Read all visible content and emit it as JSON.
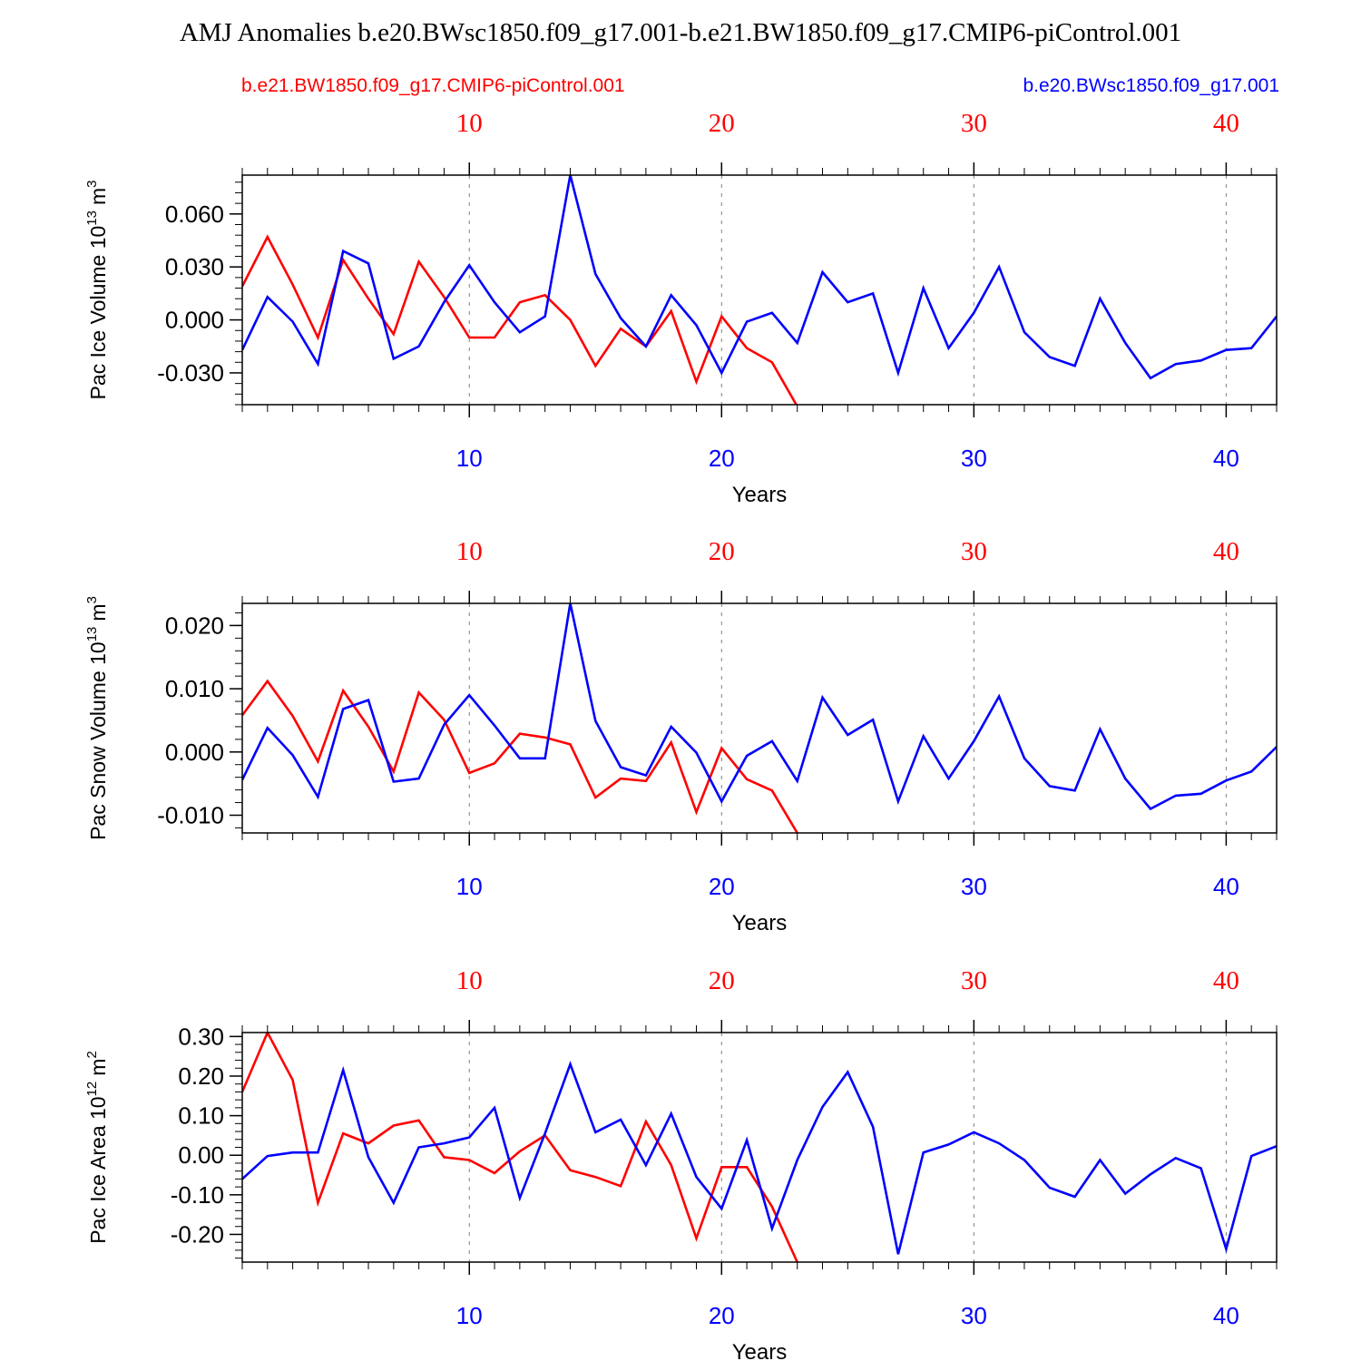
{
  "title": "AMJ Anomalies b.e20.BWsc1850.f09_g17.001-b.e21.BW1850.f09_g17.CMIP6-piControl.001",
  "legend": {
    "left_label": "b.e21.BW1850.f09_g17.CMIP6-piControl.001",
    "right_label": "b.e20.BWsc1850.f09_g17.001"
  },
  "colors": {
    "case_a": "#ff0000",
    "case_b": "#0000ff",
    "axis": "#000000",
    "grid": "#808080"
  },
  "chart_data": [
    {
      "type": "line",
      "name": "pac-ice-volume",
      "ylabel_text": "Pac Ice Volume 10",
      "ylabel_sup": "13",
      "ylabel_unit": "m",
      "ylabel_unit_sup": "3",
      "xlabel": "Years",
      "xlim": [
        1,
        42
      ],
      "ylim": [
        -0.048,
        0.082
      ],
      "yticks": [
        -0.03,
        0.0,
        0.03,
        0.06
      ],
      "ytick_labels": [
        "-0.030",
        "0.000",
        "0.030",
        "0.060"
      ],
      "yminor": 0.006,
      "xticks": [
        10,
        20,
        30,
        40
      ],
      "xtick_labels": [
        "10",
        "20",
        "30",
        "40"
      ],
      "grid_x": true,
      "series": [
        {
          "name": "b.e21.BW1850.f09_g17.CMIP6-piControl.001",
          "color": "#ff0000",
          "x": [
            1,
            2,
            3,
            4,
            5,
            6,
            7,
            8,
            9,
            10,
            11,
            12,
            13,
            14,
            15,
            16,
            17,
            18,
            19,
            20,
            21,
            22,
            23
          ],
          "values": [
            0.019,
            0.047,
            0.02,
            -0.01,
            0.034,
            0.012,
            -0.008,
            0.033,
            0.013,
            -0.01,
            -0.01,
            0.01,
            0.014,
            0.0,
            -0.026,
            -0.005,
            -0.015,
            0.005,
            -0.035,
            0.002,
            -0.016,
            -0.024,
            -0.049
          ]
        },
        {
          "name": "b.e20.BWsc1850.f09_g17.001",
          "color": "#0000ff",
          "x": [
            1,
            2,
            3,
            4,
            5,
            6,
            7,
            8,
            9,
            10,
            11,
            12,
            13,
            14,
            15,
            16,
            17,
            18,
            19,
            20,
            21,
            22,
            23,
            24,
            25,
            26,
            27,
            28,
            29,
            30,
            31,
            32,
            33,
            34,
            35,
            36,
            37,
            38,
            39,
            40,
            41,
            42
          ],
          "values": [
            -0.017,
            0.013,
            -0.001,
            -0.025,
            0.039,
            0.032,
            -0.022,
            -0.015,
            0.01,
            0.031,
            0.01,
            -0.007,
            0.002,
            0.082,
            0.026,
            0.001,
            -0.015,
            0.014,
            -0.003,
            -0.03,
            -0.001,
            0.004,
            -0.013,
            0.027,
            0.01,
            0.015,
            -0.03,
            0.018,
            -0.016,
            0.004,
            0.03,
            -0.007,
            -0.021,
            -0.026,
            0.012,
            -0.013,
            -0.033,
            -0.025,
            -0.023,
            -0.017,
            -0.016,
            0.002
          ]
        }
      ]
    },
    {
      "type": "line",
      "name": "pac-snow-volume",
      "ylabel_text": "Pac Snow Volume 10",
      "ylabel_sup": "13",
      "ylabel_unit": "m",
      "ylabel_unit_sup": "3",
      "xlabel": "Years",
      "xlim": [
        1,
        42
      ],
      "ylim": [
        -0.0128,
        0.0235
      ],
      "yticks": [
        -0.01,
        0.0,
        0.01,
        0.02
      ],
      "ytick_labels": [
        "-0.010",
        "0.000",
        "0.010",
        "0.020"
      ],
      "yminor": 0.002,
      "xticks": [
        10,
        20,
        30,
        40
      ],
      "xtick_labels": [
        "10",
        "20",
        "30",
        "40"
      ],
      "grid_x": true,
      "series": [
        {
          "name": "b.e21.BW1850.f09_g17.CMIP6-piControl.001",
          "color": "#ff0000",
          "x": [
            1,
            2,
            3,
            4,
            5,
            6,
            7,
            8,
            9,
            10,
            11,
            12,
            13,
            14,
            15,
            16,
            17,
            18,
            19,
            20,
            21,
            22,
            23
          ],
          "values": [
            0.0058,
            0.0112,
            0.0057,
            -0.0015,
            0.0097,
            0.004,
            -0.0031,
            0.0094,
            0.0051,
            -0.0033,
            -0.0018,
            0.0029,
            0.0023,
            0.0012,
            -0.0072,
            -0.0042,
            -0.0046,
            0.0015,
            -0.0095,
            0.0006,
            -0.0043,
            -0.0061,
            -0.0128
          ]
        },
        {
          "name": "b.e20.BWsc1850.f09_g17.001",
          "color": "#0000ff",
          "x": [
            1,
            2,
            3,
            4,
            5,
            6,
            7,
            8,
            9,
            10,
            11,
            12,
            13,
            14,
            15,
            16,
            17,
            18,
            19,
            20,
            21,
            22,
            23,
            24,
            25,
            26,
            27,
            28,
            29,
            30,
            31,
            32,
            33,
            34,
            35,
            36,
            37,
            38,
            39,
            40,
            41,
            42
          ],
          "values": [
            -0.0044,
            0.0038,
            -0.0005,
            -0.0071,
            0.0068,
            0.0082,
            -0.0047,
            -0.0042,
            0.0043,
            0.009,
            0.0042,
            -0.001,
            -0.001,
            0.0235,
            0.0049,
            -0.0024,
            -0.0037,
            0.004,
            -0.0001,
            -0.0078,
            -0.0006,
            0.0017,
            -0.0046,
            0.0086,
            0.0027,
            0.0051,
            -0.0078,
            0.0025,
            -0.0042,
            0.0017,
            0.0088,
            -0.001,
            -0.0054,
            -0.0061,
            0.0036,
            -0.0042,
            -0.009,
            -0.0069,
            -0.0066,
            -0.0045,
            -0.0031,
            0.0008
          ]
        }
      ]
    },
    {
      "type": "line",
      "name": "pac-ice-area",
      "ylabel_text": "Pac Ice Area 10",
      "ylabel_sup": "12",
      "ylabel_unit": "m",
      "ylabel_unit_sup": "2",
      "xlabel": "Years",
      "xlim": [
        1,
        42
      ],
      "ylim": [
        -0.27,
        0.31
      ],
      "yticks": [
        -0.2,
        -0.1,
        0.0,
        0.1,
        0.2,
        0.3
      ],
      "ytick_labels": [
        "-0.20",
        "-0.10",
        "0.00",
        "0.10",
        "0.20",
        "0.30"
      ],
      "yminor": 0.02,
      "xticks": [
        10,
        20,
        30,
        40
      ],
      "xtick_labels": [
        "10",
        "20",
        "30",
        "40"
      ],
      "grid_x": true,
      "series": [
        {
          "name": "b.e21.BW1850.f09_g17.CMIP6-piControl.001",
          "color": "#ff0000",
          "x": [
            1,
            2,
            3,
            4,
            5,
            6,
            7,
            8,
            9,
            10,
            11,
            12,
            13,
            14,
            15,
            16,
            17,
            18,
            19,
            20,
            21,
            22,
            23
          ],
          "values": [
            0.16,
            0.31,
            0.19,
            -0.12,
            0.055,
            0.03,
            0.075,
            0.088,
            -0.005,
            -0.012,
            -0.045,
            0.01,
            0.05,
            -0.038,
            -0.055,
            -0.078,
            0.085,
            -0.025,
            -0.21,
            -0.03,
            -0.03,
            -0.13,
            -0.27
          ]
        },
        {
          "name": "b.e20.BWsc1850.f09_g17.001",
          "color": "#0000ff",
          "x": [
            1,
            2,
            3,
            4,
            5,
            6,
            7,
            8,
            9,
            10,
            11,
            12,
            13,
            14,
            15,
            16,
            17,
            18,
            19,
            20,
            21,
            22,
            23,
            24,
            25,
            26,
            27,
            28,
            29,
            30,
            31,
            32,
            33,
            34,
            35,
            36,
            37,
            38,
            39,
            40,
            41,
            42
          ],
          "values": [
            -0.06,
            -0.002,
            0.007,
            0.007,
            0.215,
            -0.005,
            -0.12,
            0.02,
            0.03,
            0.045,
            0.12,
            -0.108,
            0.055,
            0.23,
            0.058,
            0.09,
            -0.025,
            0.105,
            -0.055,
            -0.135,
            0.038,
            -0.185,
            -0.012,
            0.122,
            0.21,
            0.072,
            -0.25,
            0.007,
            0.027,
            0.058,
            0.03,
            -0.012,
            -0.082,
            -0.105,
            -0.012,
            -0.097,
            -0.048,
            -0.007,
            -0.033,
            -0.237,
            -0.002,
            0.023
          ]
        }
      ]
    }
  ]
}
